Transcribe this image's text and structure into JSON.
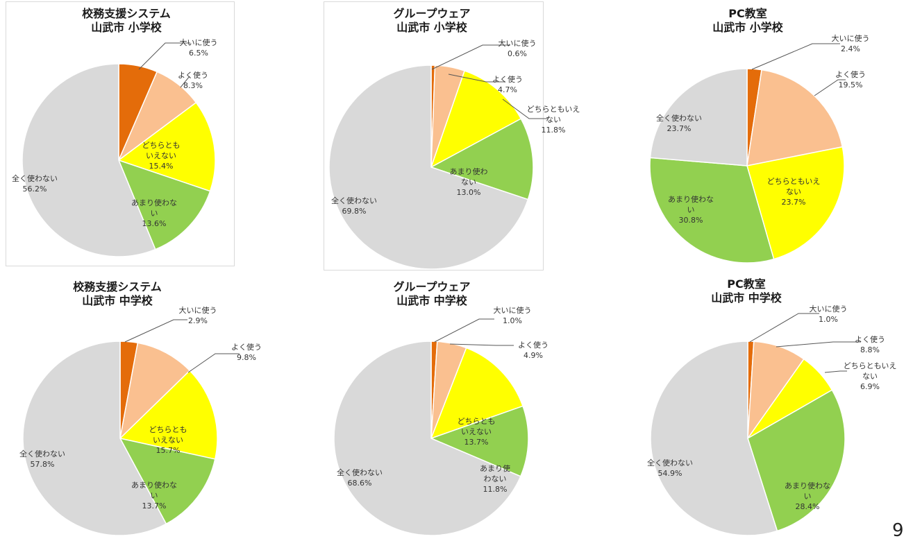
{
  "colors": {
    "大いに使う": "#e46c0a",
    "よく使う": "#fac090",
    "どちらともいえない": "#ffff00",
    "あまり使わない": "#92d050",
    "全く使わない": "#d9d9d9"
  },
  "page_number": "9",
  "chart_data": [
    {
      "type": "pie",
      "title": [
        "校務支援システム",
        "山武市 小学校"
      ],
      "slices": [
        {
          "category": "大いに使う",
          "value": 6.5,
          "label_lines": [
            "大いに使う"
          ],
          "pct": "6.5%"
        },
        {
          "category": "よく使う",
          "value": 8.3,
          "label_lines": [
            "よく使う"
          ],
          "pct": "8.3%"
        },
        {
          "category": "どちらともいえない",
          "value": 15.4,
          "label_lines": [
            "どちらとも",
            "いえない"
          ],
          "pct": "15.4%"
        },
        {
          "category": "あまり使わない",
          "value": 13.6,
          "label_lines": [
            "あまり使わな",
            "い"
          ],
          "pct": "13.6%"
        },
        {
          "category": "全く使わない",
          "value": 56.2,
          "label_lines": [
            "全く使わない"
          ],
          "pct": "56.2%"
        }
      ]
    },
    {
      "type": "pie",
      "title": [
        "グループウェア",
        "山武市 小学校"
      ],
      "slices": [
        {
          "category": "大いに使う",
          "value": 0.6,
          "label_lines": [
            "大いに使う"
          ],
          "pct": "0.6%"
        },
        {
          "category": "よく使う",
          "value": 4.7,
          "label_lines": [
            "よく使う"
          ],
          "pct": "4.7%"
        },
        {
          "category": "どちらともいえない",
          "value": 11.8,
          "label_lines": [
            "どちらともいえ",
            "ない"
          ],
          "pct": "11.8%"
        },
        {
          "category": "あまり使わない",
          "value": 13.0,
          "label_lines": [
            "あまり使わ",
            "ない"
          ],
          "pct": "13.0%"
        },
        {
          "category": "全く使わない",
          "value": 69.8,
          "label_lines": [
            "全く使わない"
          ],
          "pct": "69.8%"
        }
      ]
    },
    {
      "type": "pie",
      "title": [
        "PC教室",
        "山武市 小学校"
      ],
      "slices": [
        {
          "category": "大いに使う",
          "value": 2.4,
          "label_lines": [
            "大いに使う"
          ],
          "pct": "2.4%"
        },
        {
          "category": "よく使う",
          "value": 19.5,
          "label_lines": [
            "よく使う"
          ],
          "pct": "19.5%"
        },
        {
          "category": "どちらともいえない",
          "value": 23.7,
          "label_lines": [
            "どちらともいえ",
            "ない"
          ],
          "pct": "23.7%"
        },
        {
          "category": "あまり使わない",
          "value": 30.8,
          "label_lines": [
            "あまり使わな",
            "い"
          ],
          "pct": "30.8%"
        },
        {
          "category": "全く使わない",
          "value": 23.7,
          "label_lines": [
            "全く使わない"
          ],
          "pct": "23.7%"
        }
      ]
    },
    {
      "type": "pie",
      "title": [
        "校務支援システム",
        "山武市 中学校"
      ],
      "slices": [
        {
          "category": "大いに使う",
          "value": 2.9,
          "label_lines": [
            "大いに使う"
          ],
          "pct": "2.9%"
        },
        {
          "category": "よく使う",
          "value": 9.8,
          "label_lines": [
            "よく使う"
          ],
          "pct": "9.8%"
        },
        {
          "category": "どちらともいえない",
          "value": 15.7,
          "label_lines": [
            "どちらとも",
            "いえない"
          ],
          "pct": "15.7%"
        },
        {
          "category": "あまり使わない",
          "value": 13.7,
          "label_lines": [
            "あまり使わな",
            "い"
          ],
          "pct": "13.7%"
        },
        {
          "category": "全く使わない",
          "value": 57.8,
          "label_lines": [
            "全く使わない"
          ],
          "pct": "57.8%"
        }
      ]
    },
    {
      "type": "pie",
      "title": [
        "グループウェア",
        "山武市 中学校"
      ],
      "slices": [
        {
          "category": "大いに使う",
          "value": 1.0,
          "label_lines": [
            "大いに使う"
          ],
          "pct": "1.0%"
        },
        {
          "category": "よく使う",
          "value": 4.9,
          "label_lines": [
            "よく使う"
          ],
          "pct": "4.9%"
        },
        {
          "category": "どちらともいえない",
          "value": 13.7,
          "label_lines": [
            "どちらとも",
            "いえない"
          ],
          "pct": "13.7%"
        },
        {
          "category": "あまり使わない",
          "value": 11.8,
          "label_lines": [
            "あまり使",
            "わない"
          ],
          "pct": "11.8%"
        },
        {
          "category": "全く使わない",
          "value": 68.6,
          "label_lines": [
            "全く使わない"
          ],
          "pct": "68.6%"
        }
      ]
    },
    {
      "type": "pie",
      "title": [
        "PC教室",
        "山武市 中学校"
      ],
      "slices": [
        {
          "category": "大いに使う",
          "value": 1.0,
          "label_lines": [
            "大いに使う"
          ],
          "pct": "1.0%"
        },
        {
          "category": "よく使う",
          "value": 8.8,
          "label_lines": [
            "よく使う"
          ],
          "pct": "8.8%"
        },
        {
          "category": "どちらともいえない",
          "value": 6.9,
          "label_lines": [
            "どちらともいえ",
            "ない"
          ],
          "pct": "6.9%"
        },
        {
          "category": "あまり使わない",
          "value": 28.4,
          "label_lines": [
            "あまり使わな",
            "い"
          ],
          "pct": "28.4%"
        },
        {
          "category": "全く使わない",
          "value": 54.9,
          "label_lines": [
            "全く使わない"
          ],
          "pct": "54.9%"
        }
      ]
    }
  ]
}
